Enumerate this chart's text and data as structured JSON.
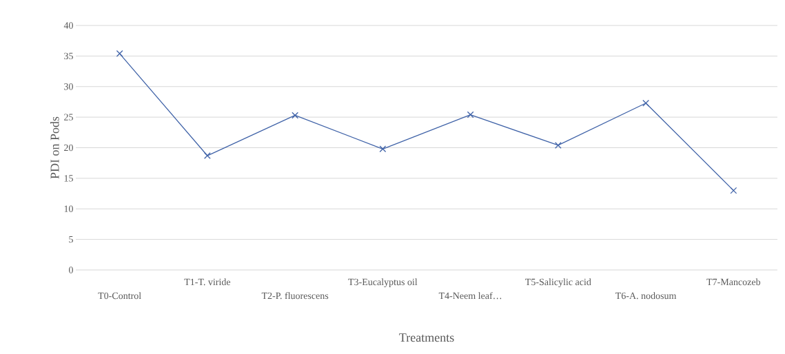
{
  "chart_data": {
    "type": "line",
    "xlabel": "Treatments",
    "ylabel": "PDI on Pods",
    "categories": [
      "T0-Control",
      "T1-T. viride",
      "T2-P. fluorescens",
      "T3-Eucalyptus oil",
      "T4-Neem leaf…",
      "T5-Salicylic acid",
      "T6-A. nodosum",
      "T7-Mancozeb"
    ],
    "values": [
      35.4,
      18.7,
      25.3,
      19.8,
      25.4,
      20.4,
      27.3,
      13.0
    ],
    "color": "#4063a8",
    "ylim": [
      0,
      40
    ],
    "yticks": [
      0,
      5,
      10,
      15,
      20,
      25,
      30,
      35,
      40
    ],
    "grid": "y",
    "marker": "cross",
    "line_style": "solid"
  }
}
